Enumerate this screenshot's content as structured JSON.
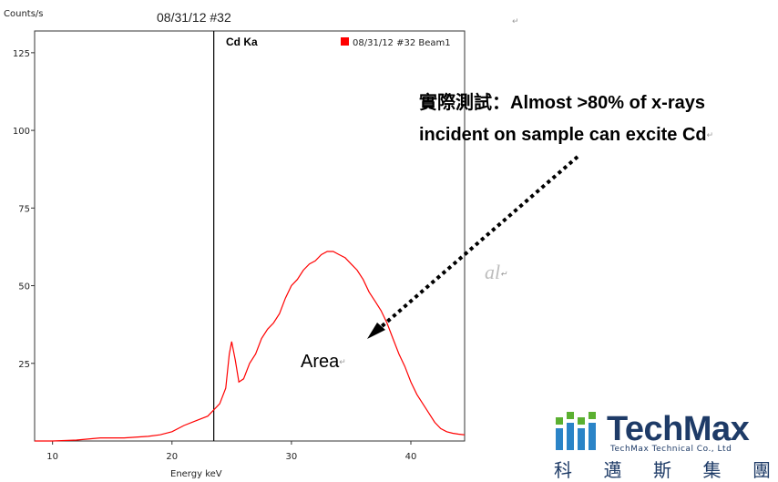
{
  "chart_data": {
    "type": "line",
    "title": "08/31/12 #32",
    "ylabel": "Counts/s",
    "xlabel": "Energy keV",
    "xlim": [
      8.5,
      44.5
    ],
    "ylim": [
      0,
      132
    ],
    "x_ticks": [
      10,
      20,
      30,
      40
    ],
    "y_ticks": [
      25,
      50,
      75,
      100,
      125
    ],
    "marker": {
      "x": 23.5,
      "label": "Cd Ka"
    },
    "legend": {
      "label": "08/31/12 #32 Beam1",
      "position": "top-right",
      "color": "#ff0000"
    },
    "series": [
      {
        "name": "08/31/12 #32 Beam1",
        "color": "#ff0000",
        "points": [
          [
            8.5,
            0
          ],
          [
            10,
            0
          ],
          [
            12,
            0.3
          ],
          [
            14,
            1
          ],
          [
            16,
            1
          ],
          [
            18,
            1.5
          ],
          [
            19,
            2
          ],
          [
            20,
            3
          ],
          [
            21,
            5
          ],
          [
            22,
            6.5
          ],
          [
            23,
            8
          ],
          [
            24,
            12
          ],
          [
            24.5,
            17
          ],
          [
            24.8,
            28
          ],
          [
            25.0,
            32
          ],
          [
            25.3,
            26
          ],
          [
            25.6,
            19
          ],
          [
            26,
            20
          ],
          [
            26.5,
            25
          ],
          [
            27,
            28
          ],
          [
            27.5,
            33
          ],
          [
            28,
            36
          ],
          [
            28.5,
            38
          ],
          [
            29,
            41
          ],
          [
            29.5,
            46
          ],
          [
            30,
            50
          ],
          [
            30.5,
            52
          ],
          [
            31,
            55
          ],
          [
            31.5,
            57
          ],
          [
            32,
            58
          ],
          [
            32.5,
            60
          ],
          [
            33,
            61
          ],
          [
            33.5,
            61
          ],
          [
            34,
            60
          ],
          [
            34.5,
            59
          ],
          [
            35,
            57
          ],
          [
            35.5,
            55
          ],
          [
            36,
            52
          ],
          [
            36.5,
            48
          ],
          [
            37,
            45
          ],
          [
            37.5,
            42
          ],
          [
            38,
            38
          ],
          [
            38.5,
            33
          ],
          [
            39,
            28
          ],
          [
            39.5,
            24
          ],
          [
            40,
            19
          ],
          [
            40.5,
            15
          ],
          [
            41,
            12
          ],
          [
            41.5,
            9
          ],
          [
            42,
            6
          ],
          [
            42.5,
            4
          ],
          [
            43,
            3
          ],
          [
            43.5,
            2.5
          ],
          [
            44,
            2.2
          ],
          [
            44.5,
            2
          ]
        ]
      }
    ]
  },
  "annotation": {
    "line1": "實際測試：Almost >80% of x-rays",
    "line2": "incident on sample can excite Cd",
    "area_label": "Area",
    "arrow_color": "#000000",
    "watermark": "al"
  },
  "logo": {
    "name": "TechMax",
    "subtitle": "TechMax Technical Co., Ltd",
    "cjk": [
      "科",
      "邁",
      "斯",
      "集",
      "團"
    ],
    "color": "#1e3b67",
    "icon_colors": [
      "#2b84c7",
      "#5bb031"
    ]
  }
}
